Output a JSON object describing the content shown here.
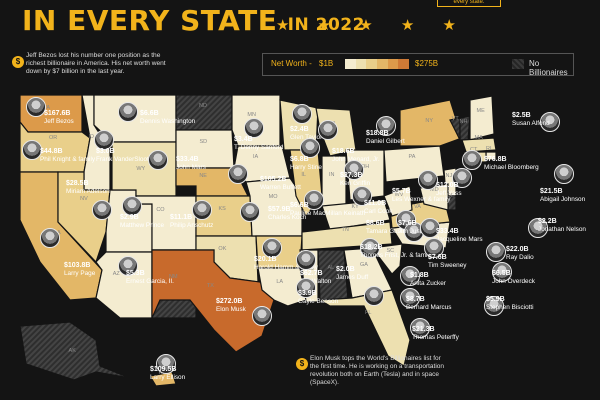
{
  "header": {
    "title_main": "IN EVERY STATE",
    "title_year": "IN 2022",
    "stars": "★ ★ ★ ★ ★",
    "top_note": "every state."
  },
  "notes": {
    "bezos": "Jeff Bezos lost his number one position as the richest billionaire in America. His net worth went down by $7 billion in the last year.",
    "musk": "Elon Musk tops the World's Billionaires list for the first time. He is working on a transportation revolution both on Earth (Tesla) and in space (SpaceX)."
  },
  "legend": {
    "label": "Net Worth -",
    "min": "$1B",
    "max": "$275B",
    "no_billionaires": "No Billionaires",
    "ramp_colors": [
      "#f4ecd0",
      "#ede0b0",
      "#e9cf8a",
      "#e3b767",
      "#dc9a4a",
      "#cf7a36"
    ]
  },
  "colors": {
    "background": "#141414",
    "accent": "#f2b31b",
    "no_billionaires": "#333333",
    "musk": "#c86a2c"
  },
  "people": [
    {
      "state": "WA",
      "value": "$167.6B",
      "name": "Jeff Bezos"
    },
    {
      "state": "OR",
      "value": "$44.8B",
      "name": "Phil Knight & family"
    },
    {
      "state": "ID",
      "value": "$3.0B",
      "name": "Frank VanderSloot"
    },
    {
      "state": "MT",
      "value": "$6.6B",
      "name": "Dennis Washington"
    },
    {
      "state": "CA",
      "value": "$103.8B",
      "name": "Larry Page"
    },
    {
      "state": "NV",
      "value": "$28.5B",
      "name": "Miriam Adelson"
    },
    {
      "state": "UT",
      "value": "$2.9B",
      "name": "Matthew Prince"
    },
    {
      "state": "WY",
      "value": "$33.4B",
      "name": "John Mars"
    },
    {
      "state": "CO",
      "value": "$11.1B",
      "name": "Philip Anschutz"
    },
    {
      "state": "AZ",
      "value": "$5.3B",
      "name": "Ernest Garcia, II."
    },
    {
      "state": "SD",
      "value": "$3.4B",
      "name": "T. Denny Sanford"
    },
    {
      "state": "NE",
      "value": "$105.2B",
      "name": "Warren Buffett"
    },
    {
      "state": "KS",
      "value": "$57.9B",
      "name": "Charles Koch"
    },
    {
      "state": "OK",
      "value": "$20.1B",
      "name": "Harold Hamm & family"
    },
    {
      "state": "TX",
      "value": "$272.0B",
      "name": "Elon Musk"
    },
    {
      "state": "MN",
      "value": "$2.4B",
      "name": "Glen Taylor"
    },
    {
      "state": "IA",
      "value": "$6.8B",
      "name": "Harry Stine"
    },
    {
      "state": "MO",
      "value": "$6.6B",
      "name": "Pauline MacMillan Keinath"
    },
    {
      "state": "AR",
      "value": "$62.7B",
      "name": "Jim Walton"
    },
    {
      "state": "LA",
      "value": "$3.9B",
      "name": "Gayle Benson"
    },
    {
      "state": "WI",
      "value": "$18.6B",
      "name": "John Menard, Jr."
    },
    {
      "state": "IL",
      "value": "$27.3B",
      "name": "Ken Griffin"
    },
    {
      "state": "MI",
      "value": "$18.8B",
      "name": "Daniel Gilbert"
    },
    {
      "state": "IN",
      "value": "$11.0B",
      "name": "Carl Cook"
    },
    {
      "state": "KY",
      "value": "$8.6B",
      "name": "Tamara Gustavson"
    },
    {
      "state": "OH",
      "value": "$5.7B",
      "name": "Les Wexner & family"
    },
    {
      "state": "TN",
      "value": "$18.2B",
      "name": "Thomas Frist, Jr. & family"
    },
    {
      "state": "MS",
      "value": "$2.0B",
      "name": "James Duff"
    },
    {
      "state": "PA",
      "value": "$12.0B",
      "name": "Jeff Yass"
    },
    {
      "state": "WV",
      "value": "$7.6B",
      "name": "Jim Justice"
    },
    {
      "state": "VA",
      "value": "$33.4B",
      "name": "Jacqueline Mars"
    },
    {
      "state": "NC",
      "value": "$7.6B",
      "name": "Tim Sweeney"
    },
    {
      "state": "SC",
      "value": "$8.7B",
      "name": "Bernard Marcus"
    },
    {
      "state": "GA",
      "value": "$1.8B",
      "name": "Anita Zucker"
    },
    {
      "state": "FL",
      "value": "$21.3B",
      "name": "Thomas Peterffy"
    },
    {
      "state": "NY",
      "value": "$76.8B",
      "name": "Michael Bloomberg"
    },
    {
      "state": "ME",
      "value": "$2.5B",
      "name": "Susan Alfond"
    },
    {
      "state": "MA",
      "value": "$21.5B",
      "name": "Abigail Johnson"
    },
    {
      "state": "RI",
      "value": "$2.2B",
      "name": "Jonathan Nelson"
    },
    {
      "state": "CT",
      "value": "$22.0B",
      "name": "Ray Dalio"
    },
    {
      "state": "NJ",
      "value": "$6.5B",
      "name": "John Overdeck"
    },
    {
      "state": "MD",
      "value": "$5.9B",
      "name": "Stephen Bisciotti"
    },
    {
      "state": "WY2",
      "value": "",
      "name": ""
    },
    {
      "state": "HI",
      "value": "$109.5B",
      "name": "Larry Ellison"
    }
  ],
  "state_abbrs": [
    "WA",
    "OR",
    "CA",
    "MT",
    "ID",
    "NV",
    "UT",
    "AZ",
    "WY",
    "CO",
    "NM",
    "ND",
    "SD",
    "NE",
    "KS",
    "OK",
    "TX",
    "MN",
    "IA",
    "MO",
    "AR",
    "LA",
    "WI",
    "IL",
    "MI",
    "IN",
    "OH",
    "KY",
    "TN",
    "MS",
    "AL",
    "GA",
    "FL",
    "SC",
    "NC",
    "VA",
    "WV",
    "PA",
    "NY",
    "VT",
    "NH",
    "ME",
    "MA",
    "RI",
    "CT",
    "NJ",
    "DE",
    "MD",
    "AK",
    "HI"
  ]
}
